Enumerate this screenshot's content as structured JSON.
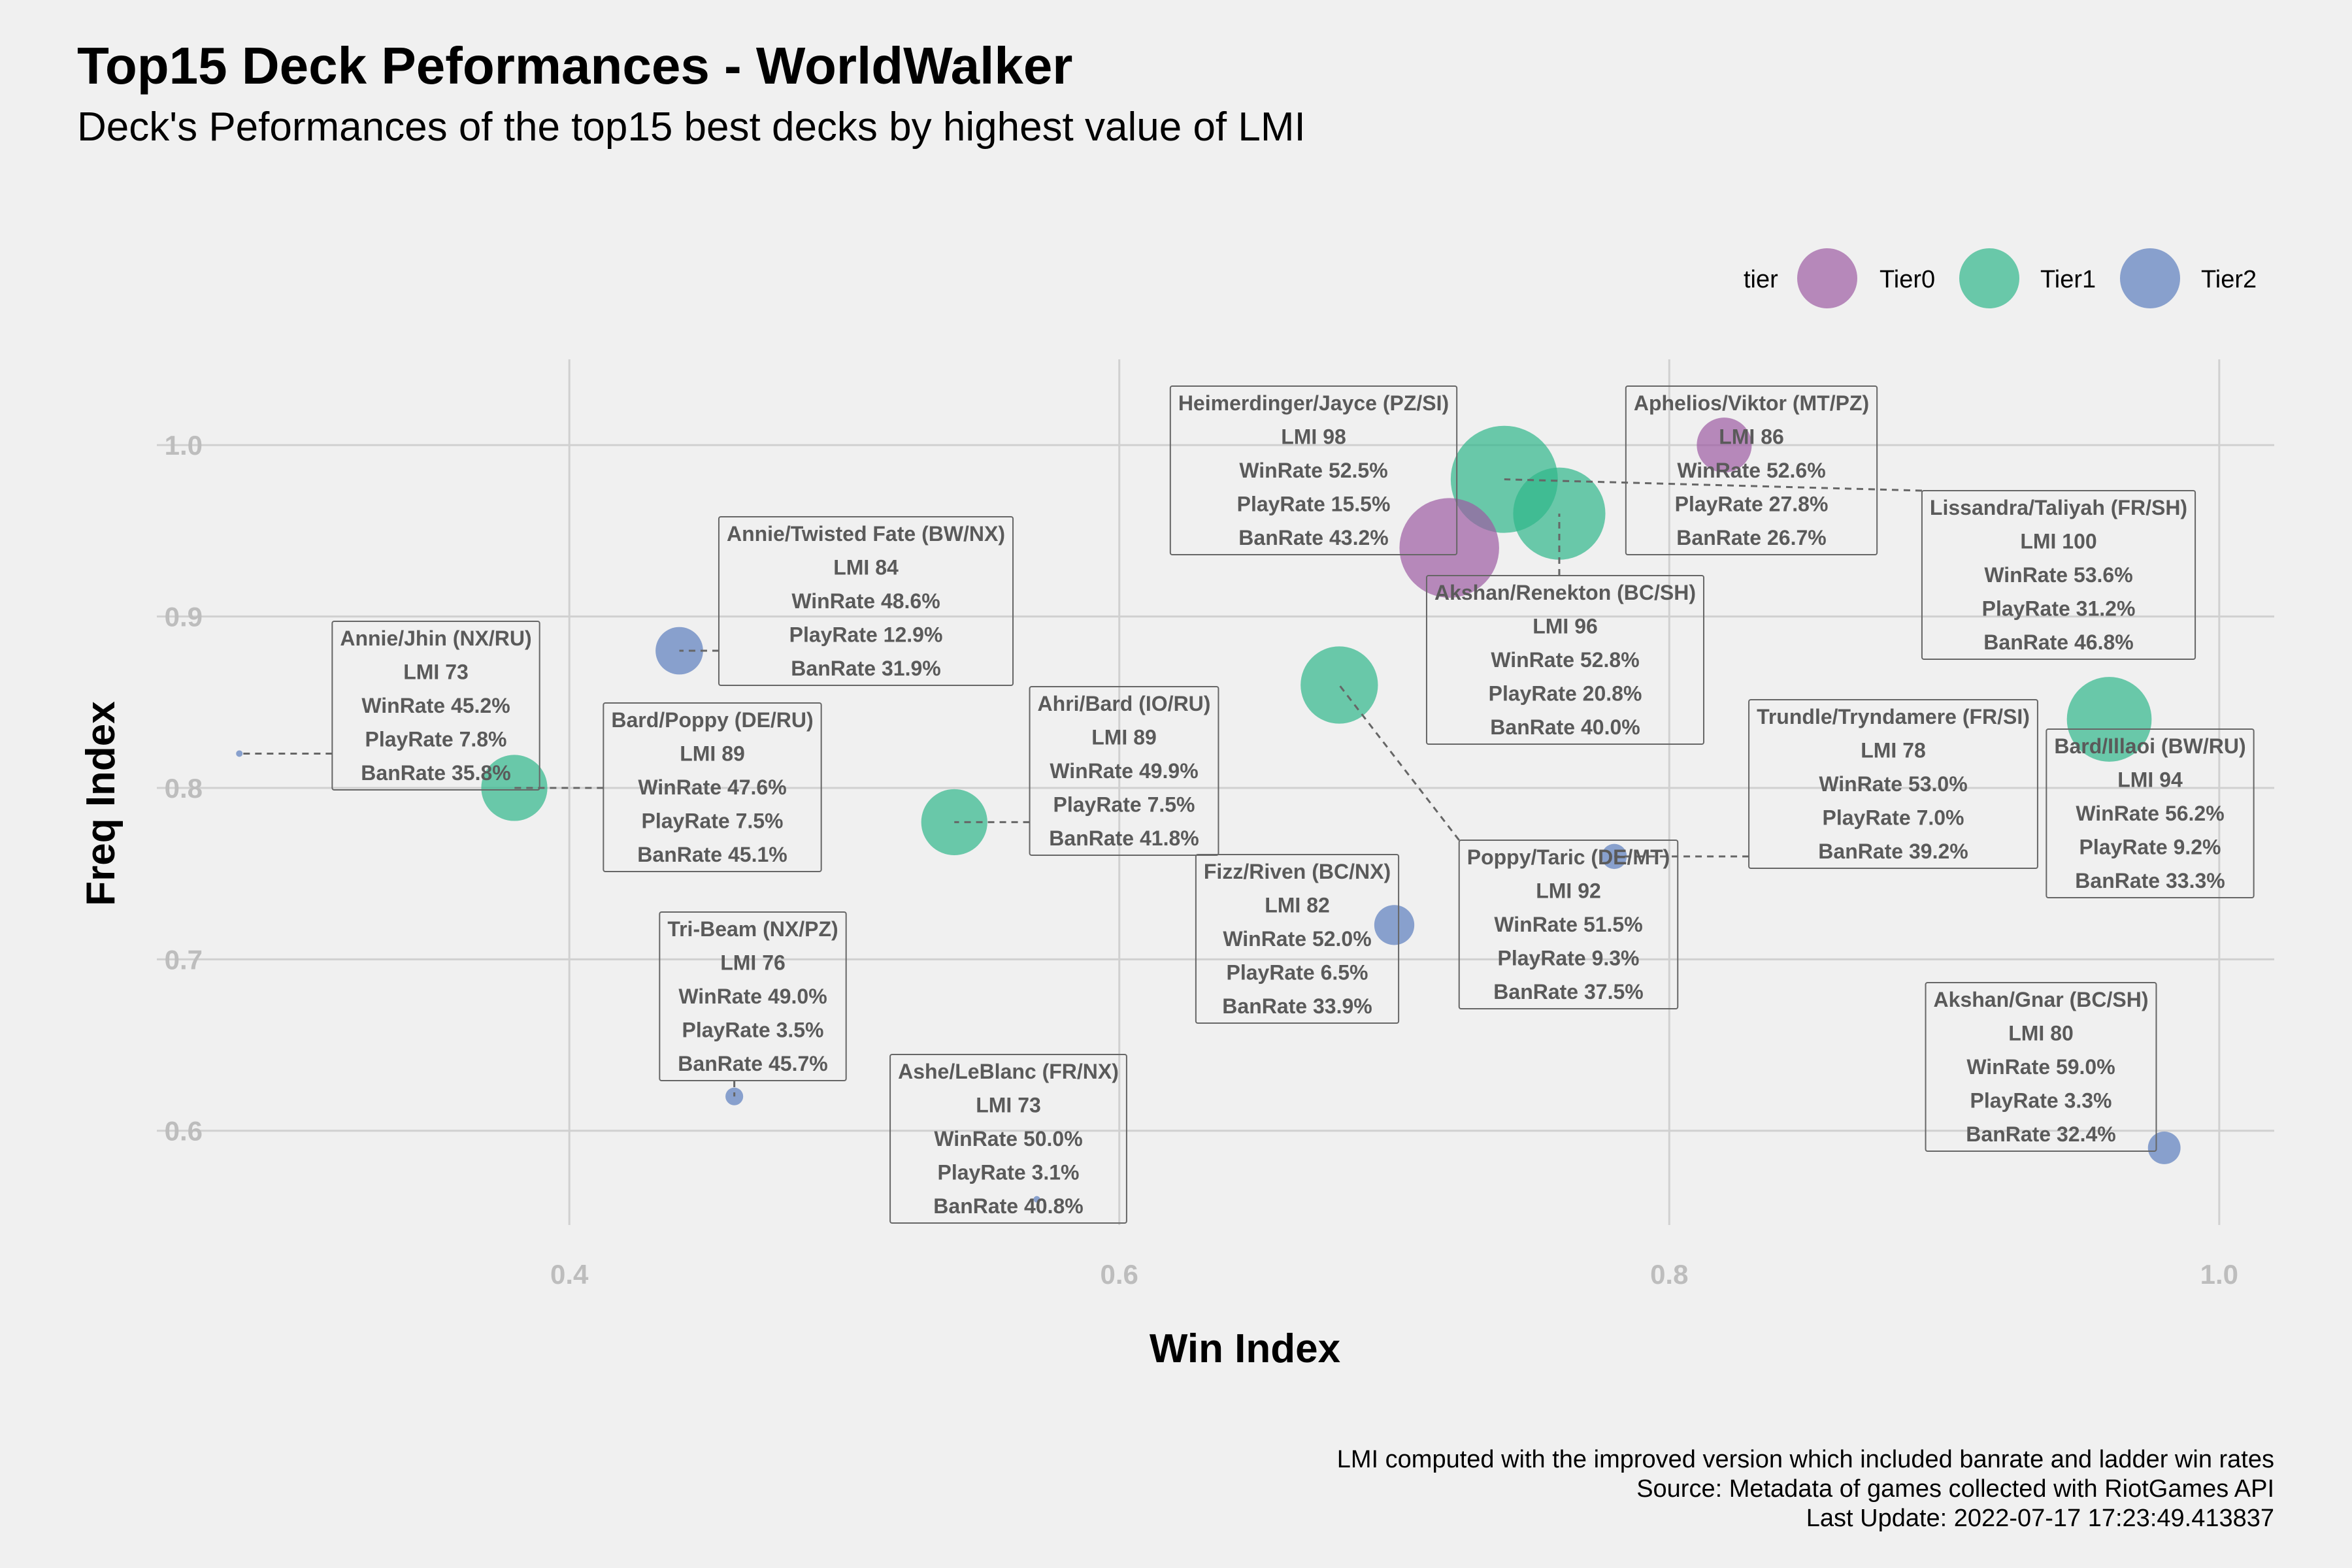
{
  "title": "Top15 Deck Peformances - WorldWalker",
  "subtitle": "Deck's Peformances of the top15 best decks by highest value of LMI",
  "caption": [
    "LMI computed with the improved version which included banrate and ladder win rates",
    "Source: Metadata of games collected with RiotGames API",
    "Last Update: 2022-07-17 17:23:49.413837"
  ],
  "legend": {
    "title": "tier",
    "entries": [
      {
        "name": "Tier0",
        "color": "#9c5ba3"
      },
      {
        "name": "Tier1",
        "color": "#2fb68a"
      },
      {
        "name": "Tier2",
        "color": "#5b7dbd"
      }
    ]
  },
  "chart_data": {
    "type": "scatter",
    "xlabel": "Win Index",
    "ylabel": "Freq Index",
    "xlim": [
      0.25,
      1.02
    ],
    "ylim": [
      0.545,
      1.05
    ],
    "x_ticks": [
      0.4,
      0.6,
      0.8,
      1.0
    ],
    "x_tick_labels": [
      "0.4",
      "0.6",
      "0.8",
      "1.0"
    ],
    "y_ticks": [
      0.6,
      0.7,
      0.8,
      0.9,
      1.0
    ],
    "y_tick_labels": [
      "0.6",
      "0.7",
      "0.8",
      "0.9",
      "1.0"
    ],
    "grid": true,
    "legend_position": "top-right",
    "points": [
      {
        "deck": "Aphelios/Viktor (MT/PZ)",
        "tier": "Tier0",
        "x": 0.82,
        "y": 1.0,
        "lmi": "LMI 86",
        "winrate": "WinRate 52.6%",
        "playrate": "PlayRate 27.8%",
        "banrate": "BanRate 26.7%"
      },
      {
        "deck": "Heimerdinger/Jayce (PZ/SI)",
        "tier": "Tier0",
        "x": 0.72,
        "y": 0.94,
        "lmi": "LMI 98",
        "winrate": "WinRate 52.5%",
        "playrate": "PlayRate 15.5%",
        "banrate": "BanRate 43.2%"
      },
      {
        "deck": "Lissandra/Taliyah (FR/SH)",
        "tier": "Tier1",
        "x": 0.74,
        "y": 0.98,
        "lmi": "LMI 100",
        "winrate": "WinRate 53.6%",
        "playrate": "PlayRate 31.2%",
        "banrate": "BanRate 46.8%"
      },
      {
        "deck": "Akshan/Renekton (BC/SH)",
        "tier": "Tier1",
        "x": 0.76,
        "y": 0.96,
        "lmi": "LMI 96",
        "winrate": "WinRate 52.8%",
        "playrate": "PlayRate 20.8%",
        "banrate": "BanRate 40.0%"
      },
      {
        "deck": "Bard/Illaoi (BW/RU)",
        "tier": "Tier1",
        "x": 0.96,
        "y": 0.84,
        "lmi": "LMI 94",
        "winrate": "WinRate 56.2%",
        "playrate": "PlayRate 9.2%",
        "banrate": "BanRate 33.3%"
      },
      {
        "deck": "Poppy/Taric (DE/MT)",
        "tier": "Tier1",
        "x": 0.68,
        "y": 0.86,
        "lmi": "LMI 92",
        "winrate": "WinRate 51.5%",
        "playrate": "PlayRate 9.3%",
        "banrate": "BanRate 37.5%"
      },
      {
        "deck": "Bard/Poppy (DE/RU)",
        "tier": "Tier1",
        "x": 0.38,
        "y": 0.8,
        "lmi": "LMI 89",
        "winrate": "WinRate 47.6%",
        "playrate": "PlayRate 7.5%",
        "banrate": "BanRate 45.1%"
      },
      {
        "deck": "Ahri/Bard (IO/RU)",
        "tier": "Tier1",
        "x": 0.54,
        "y": 0.78,
        "lmi": "LMI 89",
        "winrate": "WinRate 49.9%",
        "playrate": "PlayRate 7.5%",
        "banrate": "BanRate 41.8%"
      },
      {
        "deck": "Annie/Twisted Fate (BW/NX)",
        "tier": "Tier2",
        "x": 0.44,
        "y": 0.88,
        "lmi": "LMI 84",
        "winrate": "WinRate 48.6%",
        "playrate": "PlayRate 12.9%",
        "banrate": "BanRate 31.9%"
      },
      {
        "deck": "Fizz/Riven (BC/NX)",
        "tier": "Tier2",
        "x": 0.7,
        "y": 0.72,
        "lmi": "LMI 82",
        "winrate": "WinRate 52.0%",
        "playrate": "PlayRate 6.5%",
        "banrate": "BanRate 33.9%"
      },
      {
        "deck": "Akshan/Gnar (BC/SH)",
        "tier": "Tier2",
        "x": 0.98,
        "y": 0.59,
        "lmi": "LMI 80",
        "winrate": "WinRate 59.0%",
        "playrate": "PlayRate 3.3%",
        "banrate": "BanRate 32.4%"
      },
      {
        "deck": "Trundle/Tryndamere (FR/SI)",
        "tier": "Tier2",
        "x": 0.78,
        "y": 0.76,
        "lmi": "LMI 78",
        "winrate": "WinRate 53.0%",
        "playrate": "PlayRate 7.0%",
        "banrate": "BanRate 39.2%"
      },
      {
        "deck": "Tri-Beam (NX/PZ)",
        "tier": "Tier2",
        "x": 0.46,
        "y": 0.62,
        "lmi": "LMI 76",
        "winrate": "WinRate 49.0%",
        "playrate": "PlayRate 3.5%",
        "banrate": "BanRate 45.7%"
      },
      {
        "deck": "Annie/Jhin (NX/RU)",
        "tier": "Tier2",
        "x": 0.28,
        "y": 0.82,
        "lmi": "LMI 73",
        "winrate": "WinRate 45.2%",
        "playrate": "PlayRate 7.8%",
        "banrate": "BanRate 35.8%"
      },
      {
        "deck": "Ashe/LeBlanc (FR/NX)",
        "tier": "Tier2",
        "x": 0.57,
        "y": 0.56,
        "lmi": "LMI 73",
        "winrate": "WinRate 50.0%",
        "playrate": "PlayRate 3.1%",
        "banrate": "BanRate 40.8%"
      }
    ]
  }
}
